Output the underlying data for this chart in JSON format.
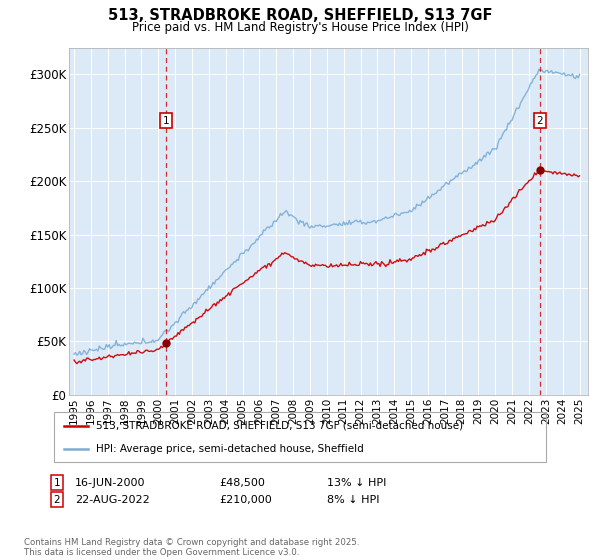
{
  "title_line1": "513, STRADBROKE ROAD, SHEFFIELD, S13 7GF",
  "title_line2": "Price paid vs. HM Land Registry's House Price Index (HPI)",
  "legend_label_red": "513, STRADBROKE ROAD, SHEFFIELD, S13 7GF (semi-detached house)",
  "legend_label_blue": "HPI: Average price, semi-detached house, Sheffield",
  "annotation1_date": "16-JUN-2000",
  "annotation1_price": "£48,500",
  "annotation1_hpi": "13% ↓ HPI",
  "annotation2_date": "22-AUG-2022",
  "annotation2_price": "£210,000",
  "annotation2_hpi": "8% ↓ HPI",
  "footer": "Contains HM Land Registry data © Crown copyright and database right 2025.\nThis data is licensed under the Open Government Licence v3.0.",
  "ylim_min": 0,
  "ylim_max": 325000,
  "yticks": [
    0,
    50000,
    100000,
    150000,
    200000,
    250000,
    300000
  ],
  "ytick_labels": [
    "£0",
    "£50K",
    "£100K",
    "£150K",
    "£200K",
    "£250K",
    "£300K"
  ],
  "red_color": "#cc0000",
  "blue_color": "#7aadd4",
  "vline_color": "#cc0000",
  "sale1_year": 2000.46,
  "sale1_price": 48500,
  "sale2_year": 2022.64,
  "sale2_price": 210000,
  "grid_color": "#ffffff",
  "background_color": "#dce9f7"
}
